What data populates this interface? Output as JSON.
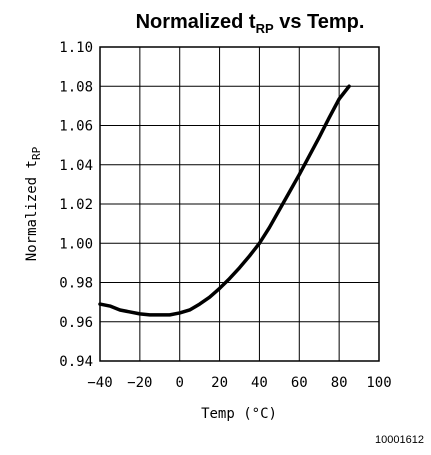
{
  "chart_data": {
    "type": "line",
    "title": {
      "prefix": "Normalized t",
      "subscript": "RP",
      "suffix": " vs Temp."
    },
    "xlabel": "Temp (°C)",
    "ylabel": {
      "prefix": "Normalized t",
      "subscript": "RP"
    },
    "xlim": [
      -40,
      100
    ],
    "ylim": [
      0.94,
      1.1
    ],
    "xticks": [
      -40,
      -20,
      0,
      20,
      40,
      60,
      80,
      100
    ],
    "xtick_labels": [
      "−40",
      "−20",
      "0",
      "20",
      "40",
      "60",
      "80",
      "100"
    ],
    "yticks": [
      0.94,
      0.96,
      0.98,
      1.0,
      1.02,
      1.04,
      1.06,
      1.08,
      1.1
    ],
    "ytick_labels": [
      "0.94",
      "0.96",
      "0.98",
      "1.00",
      "1.02",
      "1.04",
      "1.06",
      "1.08",
      "1.10"
    ],
    "grid": true,
    "series": [
      {
        "x": [
          -40,
          -35,
          -30,
          -25,
          -20,
          -15,
          -10,
          -5,
          0,
          5,
          10,
          15,
          20,
          25,
          30,
          35,
          40,
          45,
          50,
          55,
          60,
          65,
          70,
          75,
          80,
          85
        ],
        "y": [
          0.969,
          0.968,
          0.966,
          0.965,
          0.964,
          0.9635,
          0.9635,
          0.9635,
          0.9645,
          0.966,
          0.969,
          0.9725,
          0.977,
          0.982,
          0.9875,
          0.9935,
          1.0,
          1.008,
          1.017,
          1.026,
          1.035,
          1.0445,
          1.054,
          1.064,
          1.0735,
          1.08
        ]
      }
    ],
    "figure_id": "10001612"
  }
}
